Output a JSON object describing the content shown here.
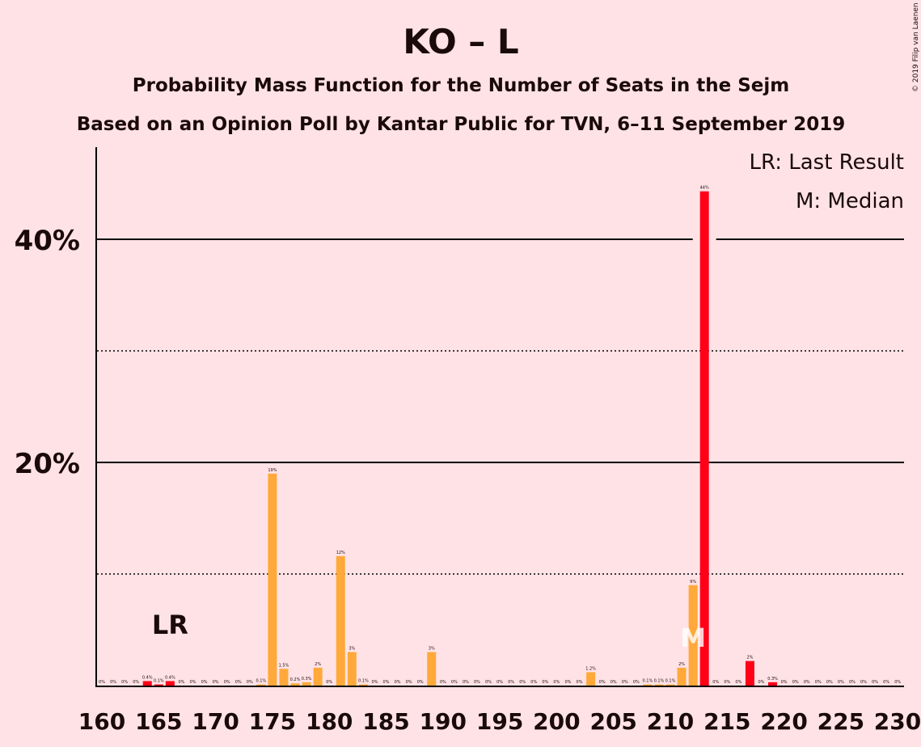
{
  "title": "KO – L",
  "subtitle": "Probability Mass Function for the Number of Seats in the Sejm",
  "subtitle2": "Based on an Opinion Poll by Kantar Public for TVN, 6–11 September 2019",
  "copyright": "© 2019 Filip van Laenen",
  "legend": {
    "lr": "LR: Last Result",
    "median": "M: Median"
  },
  "markers": {
    "last_result_label": "LR",
    "median_label": "M"
  },
  "colors": {
    "background": "#FFE2E6",
    "bar_red": "#FF0017",
    "bar_orange": "#FFA93A",
    "text": "#1a0a0a"
  },
  "chart_data": {
    "type": "bar",
    "title": "KO – L",
    "x_ticks": [
      "160",
      "165",
      "170",
      "175",
      "180",
      "185",
      "190",
      "195",
      "200",
      "205",
      "210",
      "215",
      "220",
      "225",
      "230"
    ],
    "y_ticks": [
      "20%",
      "40%"
    ],
    "ylim": [
      0,
      48
    ],
    "xlim": [
      159.5,
      230.5
    ],
    "last_result": 166,
    "median": 212,
    "bars": [
      {
        "seats": 160,
        "value": 0,
        "label": "0%"
      },
      {
        "seats": 161,
        "value": 0,
        "label": "0%"
      },
      {
        "seats": 162,
        "value": 0,
        "label": "0%"
      },
      {
        "seats": 163,
        "value": 0,
        "label": "0%"
      },
      {
        "seats": 164,
        "value": 0.4,
        "label": "0.4%"
      },
      {
        "seats": 165,
        "value": 0.1,
        "label": "0.1%"
      },
      {
        "seats": 166,
        "value": 0.4,
        "label": "0.4%"
      },
      {
        "seats": 167,
        "value": 0,
        "label": "0%"
      },
      {
        "seats": 168,
        "value": 0,
        "label": "0%"
      },
      {
        "seats": 169,
        "value": 0,
        "label": "0%"
      },
      {
        "seats": 170,
        "value": 0,
        "label": "0%"
      },
      {
        "seats": 171,
        "value": 0,
        "label": "0%"
      },
      {
        "seats": 172,
        "value": 0,
        "label": "0%"
      },
      {
        "seats": 173,
        "value": 0,
        "label": "0%"
      },
      {
        "seats": 174,
        "value": 0.1,
        "label": "0.1%"
      },
      {
        "seats": 175,
        "value": 19,
        "label": "19%"
      },
      {
        "seats": 176,
        "value": 1.5,
        "label": "1.5%"
      },
      {
        "seats": 177,
        "value": 0.2,
        "label": "0.2%"
      },
      {
        "seats": 178,
        "value": 0.3,
        "label": "0.3%"
      },
      {
        "seats": 179,
        "value": 1.6,
        "label": "2%"
      },
      {
        "seats": 180,
        "value": 0,
        "label": "0%"
      },
      {
        "seats": 181,
        "value": 11.6,
        "label": "12%"
      },
      {
        "seats": 182,
        "value": 3,
        "label": "3%"
      },
      {
        "seats": 183,
        "value": 0.1,
        "label": "0.1%"
      },
      {
        "seats": 184,
        "value": 0,
        "label": "0%"
      },
      {
        "seats": 185,
        "value": 0,
        "label": "0%"
      },
      {
        "seats": 186,
        "value": 0,
        "label": "0%"
      },
      {
        "seats": 187,
        "value": 0,
        "label": "0%"
      },
      {
        "seats": 188,
        "value": 0,
        "label": "0%"
      },
      {
        "seats": 189,
        "value": 3,
        "label": "3%"
      },
      {
        "seats": 190,
        "value": 0,
        "label": "0%"
      },
      {
        "seats": 191,
        "value": 0,
        "label": "0%"
      },
      {
        "seats": 192,
        "value": 0,
        "label": "0%"
      },
      {
        "seats": 193,
        "value": 0,
        "label": "0%"
      },
      {
        "seats": 194,
        "value": 0,
        "label": "0%"
      },
      {
        "seats": 195,
        "value": 0,
        "label": "0%"
      },
      {
        "seats": 196,
        "value": 0,
        "label": "0%"
      },
      {
        "seats": 197,
        "value": 0,
        "label": "0%"
      },
      {
        "seats": 198,
        "value": 0,
        "label": "0%"
      },
      {
        "seats": 199,
        "value": 0,
        "label": "0%"
      },
      {
        "seats": 200,
        "value": 0,
        "label": "0%"
      },
      {
        "seats": 201,
        "value": 0,
        "label": "0%"
      },
      {
        "seats": 202,
        "value": 0,
        "label": "0%"
      },
      {
        "seats": 203,
        "value": 1.2,
        "label": "1.2%"
      },
      {
        "seats": 204,
        "value": 0,
        "label": "0%"
      },
      {
        "seats": 205,
        "value": 0,
        "label": "0%"
      },
      {
        "seats": 206,
        "value": 0,
        "label": "0%"
      },
      {
        "seats": 207,
        "value": 0,
        "label": "0%"
      },
      {
        "seats": 208,
        "value": 0.1,
        "label": "0.1%"
      },
      {
        "seats": 209,
        "value": 0.1,
        "label": "0.1%"
      },
      {
        "seats": 210,
        "value": 0.1,
        "label": "0.1%"
      },
      {
        "seats": 211,
        "value": 1.6,
        "label": "2%"
      },
      {
        "seats": 212,
        "value": 9,
        "label": "9%"
      },
      {
        "seats": 213,
        "value": 44.3,
        "label": "44%"
      },
      {
        "seats": 214,
        "value": 0,
        "label": "0%"
      },
      {
        "seats": 215,
        "value": 0,
        "label": "0%"
      },
      {
        "seats": 216,
        "value": 0,
        "label": "0%"
      },
      {
        "seats": 217,
        "value": 2.2,
        "label": "2%"
      },
      {
        "seats": 218,
        "value": 0,
        "label": "0%"
      },
      {
        "seats": 219,
        "value": 0.3,
        "label": "0.3%"
      },
      {
        "seats": 220,
        "value": 0,
        "label": "0%"
      },
      {
        "seats": 221,
        "value": 0,
        "label": "0%"
      },
      {
        "seats": 222,
        "value": 0,
        "label": "0%"
      },
      {
        "seats": 223,
        "value": 0,
        "label": "0%"
      },
      {
        "seats": 224,
        "value": 0,
        "label": "0%"
      },
      {
        "seats": 225,
        "value": 0,
        "label": "0%"
      },
      {
        "seats": 226,
        "value": 0,
        "label": "0%"
      },
      {
        "seats": 227,
        "value": 0,
        "label": "0%"
      },
      {
        "seats": 228,
        "value": 0,
        "label": "0%"
      },
      {
        "seats": 229,
        "value": 0,
        "label": "0%"
      },
      {
        "seats": 230,
        "value": 0,
        "label": "0%"
      }
    ]
  }
}
